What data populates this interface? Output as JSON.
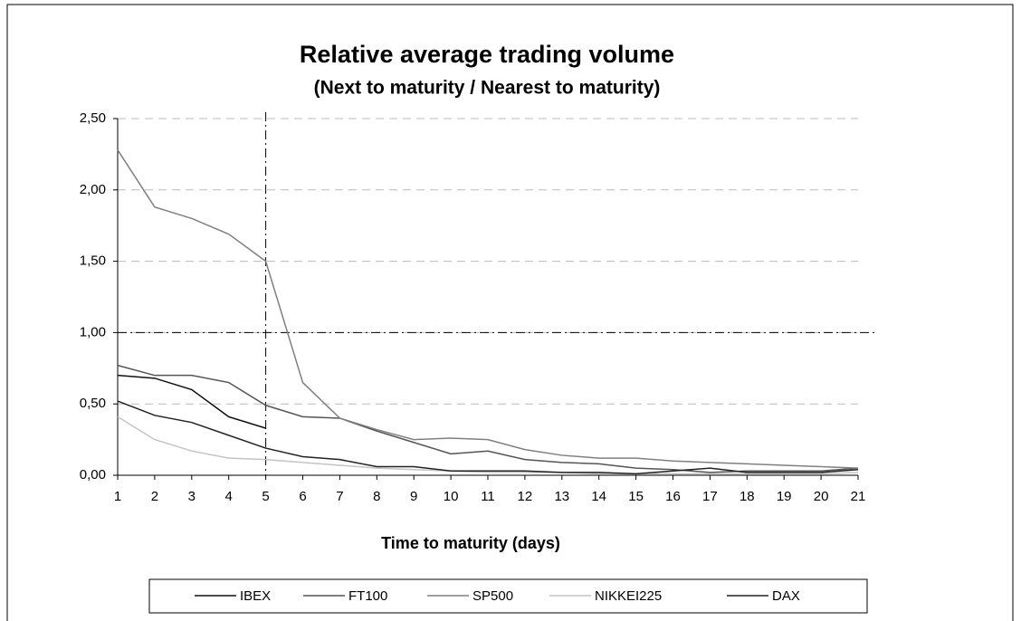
{
  "chart_data": {
    "type": "line",
    "title": "Relative average trading volume",
    "subtitle": "(Next  to maturity / Nearest to maturity)",
    "x_label": "Time to maturity (days)",
    "x": [
      1,
      2,
      3,
      4,
      5,
      6,
      7,
      8,
      9,
      10,
      11,
      12,
      13,
      14,
      15,
      16,
      17,
      18,
      19,
      20,
      21
    ],
    "xlim": [
      1,
      21
    ],
    "xticks": [
      1,
      2,
      3,
      4,
      5,
      6,
      7,
      8,
      9,
      10,
      11,
      12,
      13,
      14,
      15,
      16,
      17,
      18,
      19,
      20,
      21
    ],
    "ylim": [
      0,
      2.5
    ],
    "yticks": [
      {
        "value": 0,
        "label": "0,00"
      },
      {
        "value": 0.5,
        "label": "0,50"
      },
      {
        "value": 1,
        "label": "1,00"
      },
      {
        "value": 1.5,
        "label": "1,50"
      },
      {
        "value": 2,
        "label": "2,00"
      },
      {
        "value": 2.5,
        "label": "2,50"
      }
    ],
    "grid": true,
    "hlines": [
      1
    ],
    "vlines": [
      5
    ],
    "legend": "bottom",
    "series": [
      {
        "name": "IBEX",
        "color": "#111111",
        "values": [
          0.7,
          0.68,
          0.6,
          0.41,
          0.33,
          null,
          null,
          null,
          null,
          null,
          null,
          null,
          null,
          null,
          null,
          null,
          null,
          null,
          null,
          null,
          null
        ]
      },
      {
        "name": "FT100",
        "color": "#555555",
        "values": [
          0.77,
          0.7,
          0.7,
          0.65,
          0.49,
          0.41,
          0.4,
          0.31,
          0.23,
          0.15,
          0.17,
          0.11,
          0.09,
          0.08,
          0.05,
          0.04,
          0.02,
          0.03,
          0.03,
          0.03,
          0.05
        ]
      },
      {
        "name": "SP500",
        "color": "#808080",
        "values": [
          2.28,
          1.88,
          1.8,
          1.69,
          1.5,
          0.65,
          0.4,
          0.32,
          0.25,
          0.26,
          0.25,
          0.18,
          0.14,
          0.12,
          0.12,
          0.1,
          0.09,
          0.08,
          0.07,
          0.06,
          0.05
        ]
      },
      {
        "name": "NIKKEI225",
        "color": "#c4c4c4",
        "values": [
          0.41,
          0.25,
          0.17,
          0.12,
          0.11,
          0.09,
          0.07,
          0.05,
          0.04,
          0.03,
          0.02,
          0.02,
          0.02,
          0.01,
          0.01,
          0.01,
          0.01,
          0.01,
          0.01,
          0.01,
          0.02
        ]
      },
      {
        "name": "DAX",
        "color": "#222222",
        "values": [
          0.52,
          0.42,
          0.37,
          0.28,
          0.19,
          0.13,
          0.11,
          0.06,
          0.06,
          0.03,
          0.03,
          0.03,
          0.02,
          0.02,
          0.01,
          0.03,
          0.05,
          0.02,
          0.02,
          0.02,
          0.04
        ]
      }
    ]
  }
}
